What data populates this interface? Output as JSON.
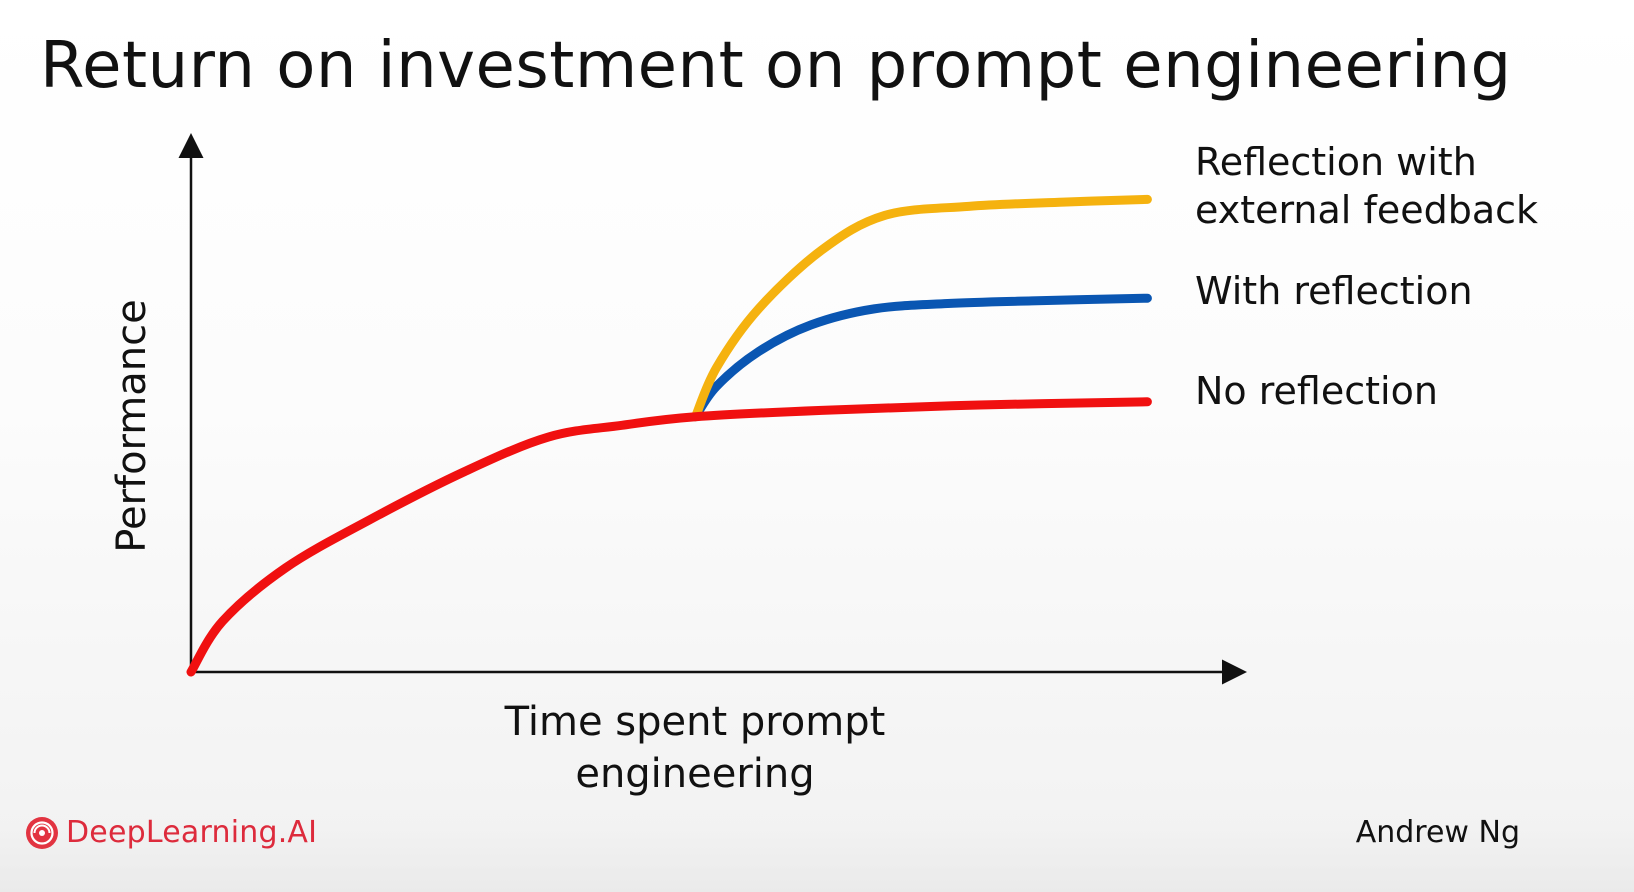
{
  "slide": {
    "title": "Return on investment on prompt engineering",
    "brand_name": "DeepLearning.AI",
    "brand_icon": "deeplearning-logo-icon",
    "author": "Andrew Ng"
  },
  "chart_data": {
    "type": "line",
    "title": "Return on investment on prompt engineering",
    "xlabel": "Time spent prompt\nengineering",
    "ylabel": "Performance",
    "xlim": [
      0,
      10
    ],
    "ylim": [
      0,
      10
    ],
    "grid": false,
    "tick_labels": false,
    "axis_arrows": true,
    "legend": "right of lines, direct labels",
    "series": [
      {
        "name": "No reflection",
        "color": "#f01010",
        "x": [
          0,
          0.3,
          0.9,
          1.7,
          2.6,
          3.4,
          4.1,
          4.8,
          6.0,
          7.5,
          9.1
        ],
        "y": [
          0,
          0.95,
          1.95,
          2.85,
          3.75,
          4.4,
          4.62,
          4.78,
          4.9,
          5.0,
          5.06
        ]
      },
      {
        "name": "With reflection",
        "color": "#0a56b2",
        "x": [
          4.8,
          5.0,
          5.4,
          5.9,
          6.5,
          7.2,
          8.0,
          9.1
        ],
        "y": [
          4.78,
          5.35,
          6.0,
          6.5,
          6.8,
          6.9,
          6.95,
          7.0
        ]
      },
      {
        "name": "Reflection with\nexternal feedback",
        "color": "#f5b20f",
        "x": [
          4.8,
          5.0,
          5.4,
          6.0,
          6.6,
          7.4,
          8.3,
          9.1
        ],
        "y": [
          4.78,
          5.7,
          6.8,
          7.9,
          8.55,
          8.72,
          8.8,
          8.85
        ]
      }
    ]
  }
}
